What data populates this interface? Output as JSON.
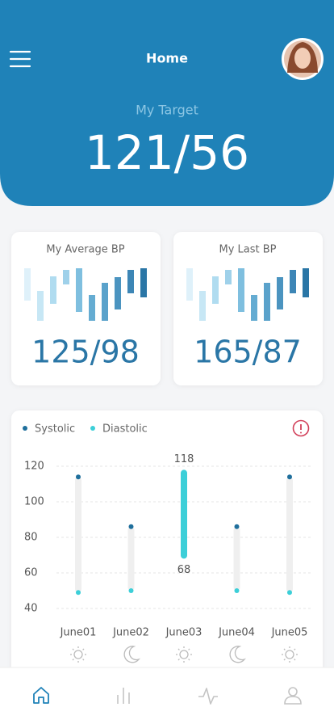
{
  "header": {
    "title": "Home",
    "target_label": "My Target",
    "target_value": "121/56"
  },
  "cards": [
    {
      "title": "My Average BP",
      "value": "125/98"
    },
    {
      "title": "My Last BP",
      "value": "165/87"
    }
  ],
  "chart_data": {
    "type": "range",
    "categories": [
      "June01",
      "June02",
      "June03",
      "June04",
      "June05"
    ],
    "series": [
      {
        "name": "Systolic",
        "color": "#1f6f9c",
        "values": [
          114,
          86,
          118,
          86,
          114
        ]
      },
      {
        "name": "Diastolic",
        "color": "#3ccfd8",
        "values": [
          49,
          50,
          68,
          50,
          49
        ]
      }
    ],
    "ylim": [
      40,
      120
    ],
    "yticks": [
      40,
      60,
      80,
      100,
      120
    ],
    "grid": true,
    "selected_index": 2
  }
}
